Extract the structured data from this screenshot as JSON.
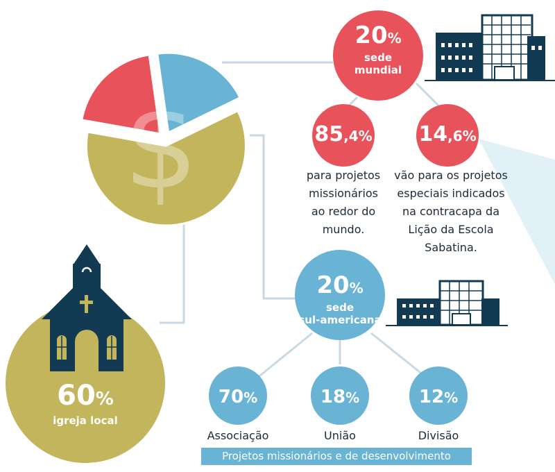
{
  "colors": {
    "red": "#e8525a",
    "blue": "#69b3d4",
    "olive": "#c2b55b",
    "navy": "#123a52",
    "line": "#c9d9e3"
  },
  "pie": {
    "slices": [
      {
        "share": 60,
        "color": "olive"
      },
      {
        "share": 20,
        "color": "red"
      },
      {
        "share": 20,
        "color": "blue"
      }
    ],
    "icon": "dollar-sign-icon"
  },
  "sede_mundial": {
    "value": "20",
    "unit": "%",
    "label_line1": "sede",
    "label_line2": "mundial"
  },
  "projetos_missionarios": {
    "value": "85",
    "decimal": ",4",
    "unit": "%",
    "desc": [
      "para projetos",
      "missionários",
      "ao redor do",
      "mundo."
    ]
  },
  "projetos_especiais": {
    "value": "14",
    "decimal": ",6",
    "unit": "%",
    "desc": [
      "vão para os projetos",
      "especiais indicados",
      "na contracapa da",
      "Lição da Escola",
      "Sabatina."
    ]
  },
  "sede_sul_americana": {
    "value": "20",
    "unit": "%",
    "label_line1": "sede",
    "label_line2": "sul-americana"
  },
  "associacao": {
    "value": "70",
    "unit": "%",
    "label": "Associação"
  },
  "uniao": {
    "value": "18",
    "unit": "%",
    "label": "União"
  },
  "divisao": {
    "value": "12",
    "unit": "%",
    "label": "Divisão"
  },
  "igreja_local": {
    "value": "60",
    "unit": "%",
    "label": "igreja local"
  },
  "footer_bar": "Projetos missionários e de desenvolvimento"
}
